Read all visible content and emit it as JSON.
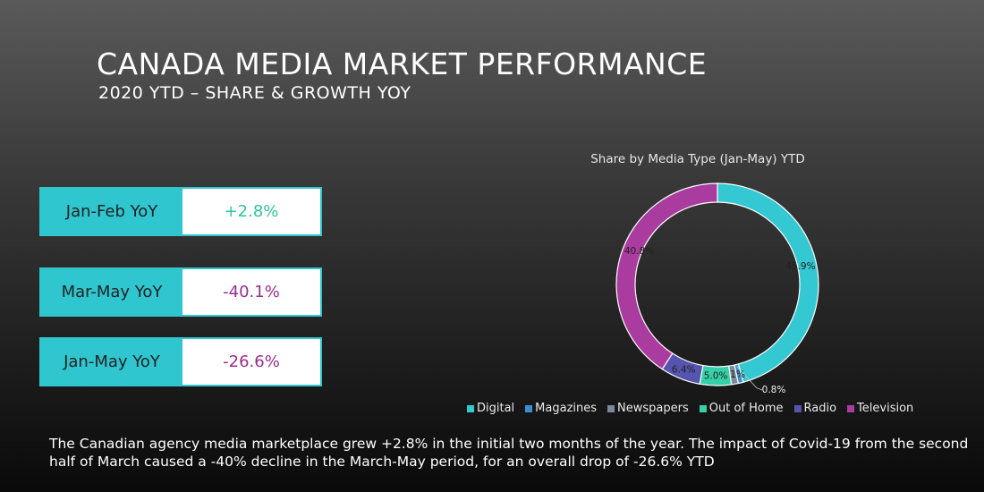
{
  "header": {
    "title": "CANADA MEDIA MARKET PERFORMANCE",
    "subtitle": "2020 YTD – SHARE & GROWTH YOY"
  },
  "kpis": [
    {
      "label": "Jan-Feb YoY",
      "value": "+2.8%"
    },
    {
      "label": "Mar-May YoY",
      "value": "-40.1%"
    },
    {
      "label": "Jan-May YoY",
      "value": "-26.6%"
    }
  ],
  "chart_data": {
    "type": "pie",
    "title": "Share by Media Type (Jan-May) YTD",
    "categories": [
      "Digital",
      "Magazines",
      "Newspapers",
      "Out of Home",
      "Radio",
      "Television"
    ],
    "values": [
      45.9,
      0.8,
      1.1,
      5.0,
      6.4,
      40.8
    ],
    "data_labels": [
      "45.9%",
      "0.8%",
      "1.1%",
      "5.0%",
      "6.4%",
      "40.8%"
    ],
    "colors": [
      "#33c8d2",
      "#3a8fd0",
      "#7a8a98",
      "#35d0a8",
      "#5754b0",
      "#a93c9e"
    ],
    "hole": true,
    "legend_position": "bottom"
  },
  "footer": {
    "text": "The Canadian agency media marketplace grew +2.8% in the initial two months of the year. The impact of Covid-19 from the second half of March caused a -40% decline in the March-May period, for an overall drop of -26.6% YTD"
  }
}
